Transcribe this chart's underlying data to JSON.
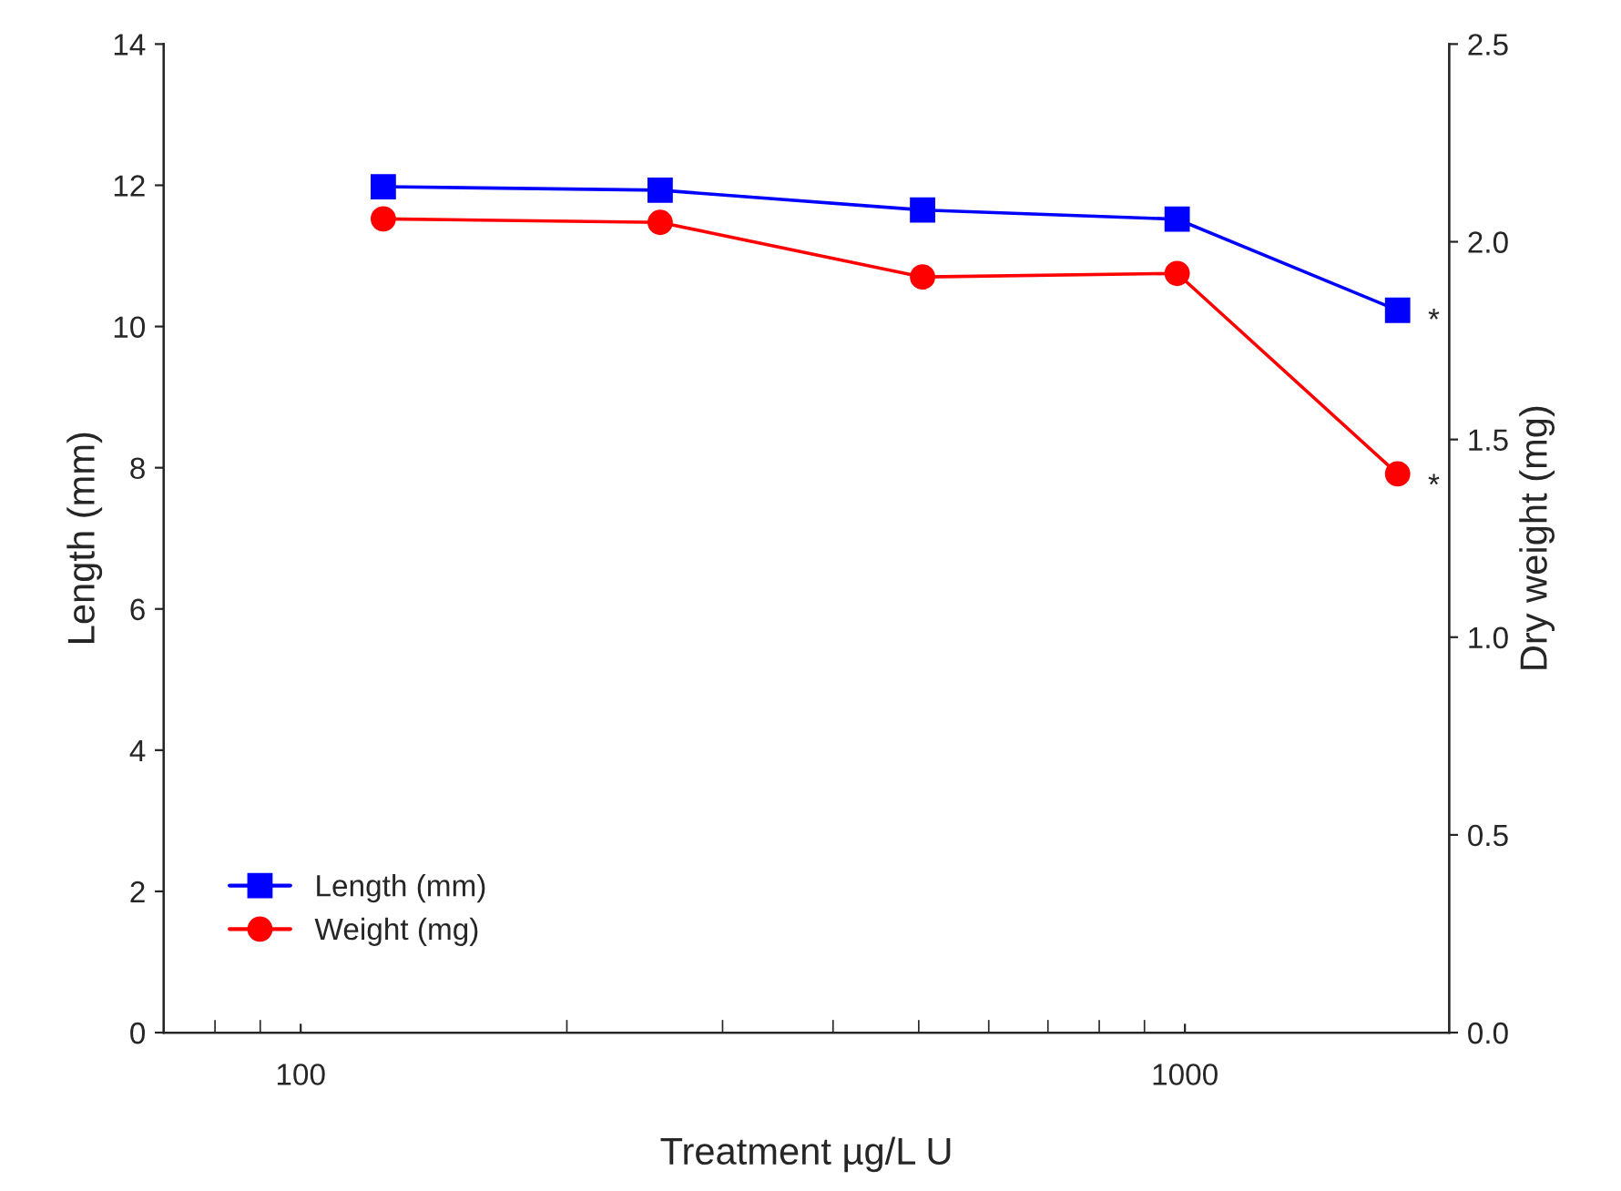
{
  "chart_data": {
    "type": "line",
    "xlabel": "Treatment µg/L U",
    "ylabel": "Length (mm)",
    "y2label": "Dry weight (mg)",
    "x": [
      124,
      255,
      505,
      980,
      1740
    ],
    "log": "x",
    "xlim": [
      70,
      1990
    ],
    "xticks": [
      100,
      1000
    ],
    "ylim": [
      0,
      14
    ],
    "yticks": [
      0,
      2,
      4,
      6,
      8,
      10,
      12,
      14
    ],
    "y2lim": [
      0,
      2.5
    ],
    "y2ticks": [
      {
        "value": 0,
        "label": "0.0"
      },
      {
        "value": 0.5,
        "label": "0.5"
      },
      {
        "value": 1,
        "label": "1.0"
      },
      {
        "value": 1.5,
        "label": "1.5"
      },
      {
        "value": 2,
        "label": "2.0"
      },
      {
        "value": 2.5,
        "label": "2.5"
      }
    ],
    "series": [
      {
        "name": "Length (mm)",
        "color": "#0000ff",
        "marker": "square",
        "values": [
          11.98,
          11.93,
          11.65,
          11.52,
          10.23
        ],
        "errors": [
          0.12,
          0.12,
          0.12,
          0.12,
          0.1
        ]
      },
      {
        "name": "Weight (mg)",
        "color": "#ff0000",
        "marker": "circle",
        "axis": "y2",
        "values": [
          2.058,
          2.049,
          1.911,
          1.92,
          1.413
        ],
        "errors": [
          0.01,
          0.01,
          0.01,
          0.01,
          0.01
        ]
      }
    ],
    "annotations": [
      {
        "text": "*",
        "x": 1740,
        "y": 10.1
      },
      {
        "text": "*",
        "x": 1740,
        "y": 7.76
      }
    ],
    "legend": "bottom left",
    "grid": false,
    "line_style": "solid"
  }
}
